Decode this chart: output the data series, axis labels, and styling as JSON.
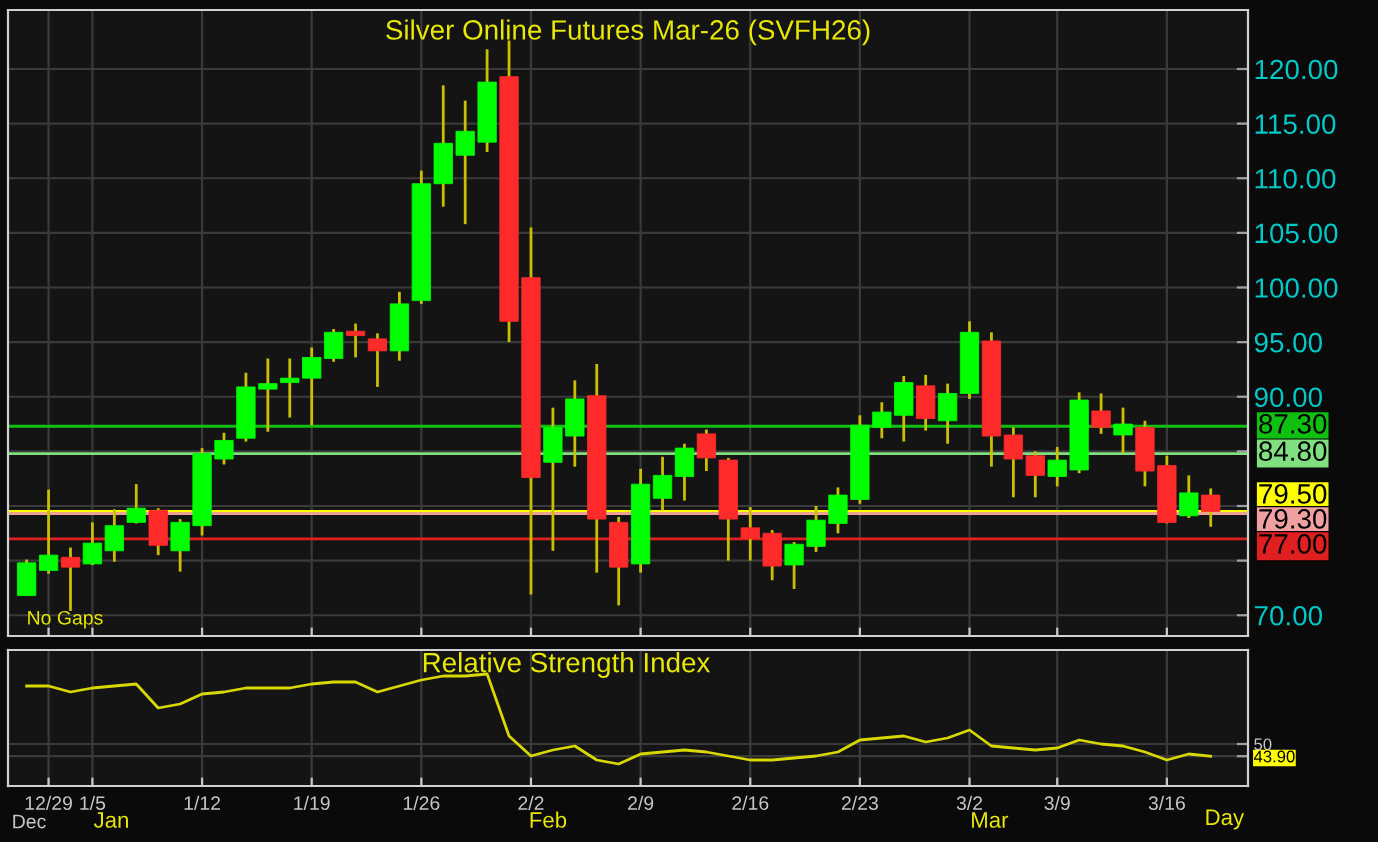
{
  "chart_data": [
    {
      "type": "candlestick",
      "title": "Silver Online Futures Mar-26 (SVFH26)",
      "categories": [
        null,
        null,
        null,
        null,
        null,
        null,
        null,
        null,
        null,
        null,
        null,
        null,
        null,
        null,
        null,
        null,
        null,
        null,
        null,
        null,
        null,
        null,
        null,
        null,
        null,
        null,
        null,
        null,
        null,
        null,
        null,
        null,
        null,
        null,
        null,
        null,
        null,
        null,
        null,
        null,
        null,
        null,
        null,
        null,
        null,
        null,
        null,
        null,
        null,
        null,
        null,
        null,
        null,
        null,
        null
      ],
      "ohlc": [
        [
          71.8,
          75.1,
          71.8,
          74.8
        ],
        [
          74.1,
          81.5,
          73.8,
          75.5
        ],
        [
          75.3,
          76.2,
          70.4,
          74.4
        ],
        [
          74.7,
          78.5,
          74.6,
          76.6
        ],
        [
          75.9,
          79.7,
          74.9,
          78.2
        ],
        [
          78.5,
          82.0,
          78.4,
          79.8
        ],
        [
          79.6,
          79.8,
          75.5,
          76.4
        ],
        [
          75.9,
          78.8,
          74.0,
          78.5
        ],
        [
          78.2,
          85.3,
          77.3,
          84.8
        ],
        [
          84.3,
          86.7,
          83.8,
          86.0
        ],
        [
          86.2,
          92.2,
          85.9,
          90.9
        ],
        [
          90.7,
          93.5,
          86.8,
          91.2
        ],
        [
          91.3,
          93.5,
          88.1,
          91.7
        ],
        [
          91.7,
          94.5,
          87.4,
          93.6
        ],
        [
          93.5,
          96.2,
          93.2,
          95.9
        ],
        [
          96.0,
          96.7,
          93.6,
          95.6
        ],
        [
          95.3,
          95.8,
          90.9,
          94.2
        ],
        [
          94.2,
          99.6,
          93.3,
          98.5
        ],
        [
          98.8,
          110.7,
          98.5,
          109.5
        ],
        [
          109.5,
          118.5,
          107.4,
          113.2
        ],
        [
          112.1,
          117.1,
          105.8,
          114.3
        ],
        [
          113.3,
          121.8,
          112.4,
          118.8
        ],
        [
          119.3,
          122.6,
          95.0,
          96.9
        ],
        [
          100.9,
          105.5,
          71.9,
          82.6
        ],
        [
          84.0,
          89.0,
          75.9,
          87.2
        ],
        [
          86.4,
          91.5,
          83.6,
          89.8
        ],
        [
          90.1,
          93.0,
          73.9,
          78.8
        ],
        [
          78.5,
          79.0,
          70.9,
          74.4
        ],
        [
          74.7,
          83.4,
          73.9,
          82.0
        ],
        [
          80.7,
          84.5,
          79.6,
          82.8
        ],
        [
          82.7,
          85.7,
          80.5,
          85.3
        ],
        [
          86.6,
          87.0,
          83.2,
          84.4
        ],
        [
          84.2,
          84.4,
          75.0,
          78.8
        ],
        [
          78.0,
          79.9,
          75.0,
          77.0
        ],
        [
          77.5,
          77.8,
          73.2,
          74.5
        ],
        [
          74.6,
          76.7,
          72.4,
          76.5
        ],
        [
          76.3,
          80.0,
          75.8,
          78.7
        ],
        [
          78.4,
          81.7,
          77.5,
          81.0
        ],
        [
          80.6,
          88.3,
          80.2,
          87.4
        ],
        [
          87.2,
          89.5,
          86.2,
          88.6
        ],
        [
          88.3,
          91.9,
          85.9,
          91.3
        ],
        [
          91.0,
          92.0,
          86.9,
          88.0
        ],
        [
          87.8,
          91.2,
          85.7,
          90.3
        ],
        [
          90.3,
          96.9,
          89.8,
          95.9
        ],
        [
          95.1,
          95.9,
          83.6,
          86.4
        ],
        [
          86.5,
          87.2,
          80.8,
          84.3
        ],
        [
          84.6,
          85.0,
          80.8,
          82.8
        ],
        [
          82.7,
          85.4,
          81.8,
          84.2
        ],
        [
          83.3,
          90.4,
          83.0,
          89.7
        ],
        [
          88.7,
          90.3,
          86.6,
          87.2
        ],
        [
          86.5,
          89.0,
          84.8,
          87.5
        ],
        [
          87.2,
          87.8,
          81.8,
          83.2
        ],
        [
          83.7,
          84.6,
          78.4,
          78.5
        ],
        [
          79.1,
          82.8,
          78.9,
          81.2
        ],
        [
          81.0,
          81.6,
          78.1,
          79.5
        ]
      ],
      "colors": [
        "#00ff00",
        "#00ff00",
        "#ff2a2a",
        "#00ff00",
        "#00ff00",
        "#00ff00",
        "#ff2a2a",
        "#00ff00",
        "#00ff00",
        "#00ff00",
        "#00ff00",
        "#00ff00",
        "#00ff00",
        "#00ff00",
        "#00ff00",
        "#ff2a2a",
        "#ff2a2a",
        "#00ff00",
        "#00ff00",
        "#00ff00",
        "#00ff00",
        "#00ff00",
        "#ff2a2a",
        "#ff2a2a",
        "#00ff00",
        "#00ff00",
        "#ff2a2a",
        "#ff2a2a",
        "#00ff00",
        "#00ff00",
        "#00ff00",
        "#ff2a2a",
        "#ff2a2a",
        "#ff2a2a",
        "#ff2a2a",
        "#00ff00",
        "#00ff00",
        "#00ff00",
        "#00ff00",
        "#00ff00",
        "#00ff00",
        "#ff2a2a",
        "#00ff00",
        "#00ff00",
        "#ff2a2a",
        "#ff2a2a",
        "#ff2a2a",
        "#00ff00",
        "#00ff00",
        "#ff2a2a",
        "#00ff00",
        "#ff2a2a",
        "#ff2a2a",
        "#00ff00",
        "#ff2a2a"
      ],
      "ylim": [
        68.1,
        125.4
      ],
      "yticks": [
        {
          "value": 70,
          "label": "70.00"
        },
        {
          "value": 75,
          "label": null
        },
        {
          "value": 80,
          "label": null
        },
        {
          "value": 85,
          "label": null
        },
        {
          "value": 90,
          "label": "90.00"
        },
        {
          "value": 95,
          "label": "95.00"
        },
        {
          "value": 100,
          "label": "100.00"
        },
        {
          "value": 105,
          "label": "105.00"
        },
        {
          "value": 110,
          "label": "110.00"
        },
        {
          "value": 115,
          "label": "115.00"
        },
        {
          "value": 120,
          "label": "120.00"
        }
      ],
      "ref_lines": [
        {
          "axis": "y",
          "value": 87.3,
          "label": "87.30",
          "color": "#10c010"
        },
        {
          "axis": "y",
          "value": 84.8,
          "label": "84.80",
          "color": "#80e080"
        },
        {
          "axis": "y",
          "value": 79.5,
          "label": "79.50",
          "color": "#ffff00"
        },
        {
          "axis": "y",
          "value": 79.3,
          "label": "79.30",
          "color": "#f0a0a0"
        },
        {
          "axis": "y",
          "value": 77.0,
          "label": "77.00",
          "color": "#e02020"
        }
      ],
      "annotations": [
        "No Gaps"
      ],
      "grid": true,
      "tick_labels": "y"
    },
    {
      "type": "line",
      "title": "Relative Strength Index",
      "categories": [
        null,
        "12/29",
        null,
        "1/5",
        null,
        null,
        null,
        null,
        "1/12",
        null,
        null,
        null,
        null,
        "1/19",
        null,
        null,
        null,
        null,
        "1/26",
        null,
        null,
        null,
        null,
        "2/2",
        null,
        null,
        null,
        null,
        "2/9",
        null,
        null,
        null,
        null,
        "2/16",
        null,
        null,
        null,
        null,
        "2/23",
        null,
        null,
        null,
        null,
        "3/2",
        null,
        null,
        null,
        "3/9",
        null,
        null,
        null,
        null,
        "3/16",
        null,
        null
      ],
      "series": [
        {
          "color": "#d8d800",
          "values": [
            79,
            79,
            76,
            78,
            79,
            80,
            68,
            70,
            75,
            76,
            78,
            78,
            78,
            80,
            81,
            81,
            76,
            79,
            82,
            84,
            84,
            85,
            54,
            44,
            47,
            49,
            42,
            40,
            45,
            46,
            47,
            46,
            44,
            42,
            42,
            43,
            44,
            46,
            52,
            53,
            54,
            51,
            53,
            57,
            49,
            48,
            47,
            48,
            52,
            50,
            49,
            46,
            42,
            45,
            43.9
          ]
        }
      ],
      "ylim": [
        29,
        97
      ],
      "yticks": [
        50,
        {
          "value": 43.9,
          "label": "43.90"
        }
      ],
      "annotations": [
        "Dec",
        "Jan",
        "Feb",
        "Mar",
        "Day"
      ],
      "grid": true
    }
  ]
}
